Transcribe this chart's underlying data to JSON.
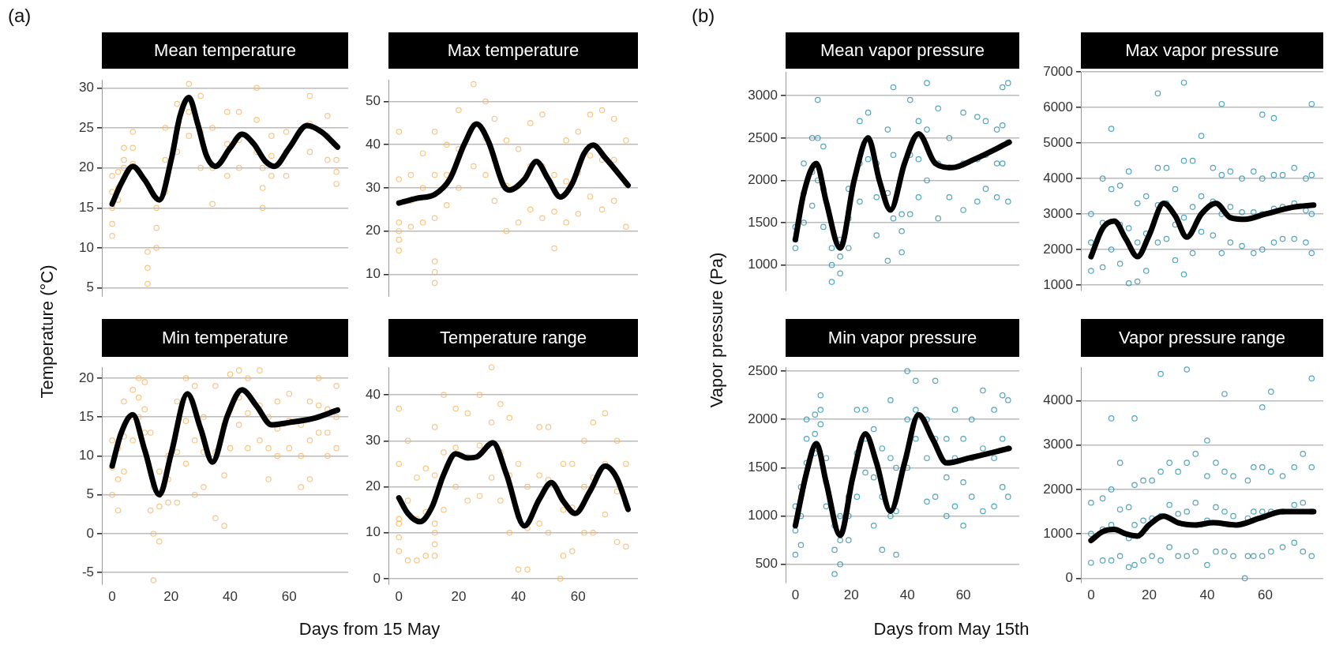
{
  "chart_data": [
    {
      "type": "scatter",
      "title": "Mean temperature",
      "ylabel": "Temperature (°C)",
      "annotations": [
        "(a)"
      ],
      "xlim": [
        -3.5,
        80
      ],
      "xticks": [
        0,
        20,
        40,
        60
      ],
      "ylim": [
        4,
        31
      ],
      "yticks": [
        5,
        10,
        15,
        20,
        25,
        30
      ],
      "grid": "y",
      "tick_labels": "y",
      "marker": "circle",
      "series": [
        {
          "type": "scatter",
          "color": "#f4b35e",
          "x": [
            0,
            0,
            0,
            0,
            0,
            2,
            2,
            2,
            4,
            4,
            4,
            7,
            7,
            7,
            12,
            12,
            12,
            15,
            15,
            15,
            18,
            18,
            18,
            22,
            22,
            22,
            26,
            26,
            26,
            30,
            30,
            30,
            34,
            34,
            34,
            39,
            39,
            39,
            43,
            43,
            43,
            49,
            49,
            49,
            51,
            51,
            51,
            54,
            54,
            54,
            59,
            59,
            59,
            67,
            67,
            67,
            73,
            73,
            73,
            76,
            76,
            76
          ],
          "values": [
            11.5,
            13,
            15,
            17,
            19,
            16,
            17.5,
            19.5,
            20,
            21,
            22.5,
            20.5,
            22.5,
            24.5,
            5.5,
            7.5,
            9.5,
            10,
            12.5,
            15,
            17,
            21,
            25,
            22,
            25,
            28,
            24,
            27,
            30.5,
            20,
            24.5,
            29,
            15.5,
            20,
            25,
            19,
            23,
            27,
            20,
            23.5,
            27,
            22,
            26,
            30,
            15,
            17.5,
            20,
            19,
            21.5,
            24,
            19,
            22,
            24.5,
            22,
            25.5,
            29,
            21,
            24,
            26.5,
            18,
            19.5,
            21
          ]
        },
        {
          "type": "line",
          "color": "#000000",
          "marker": "none",
          "x": [
            0,
            3,
            7,
            11,
            16,
            20,
            23,
            26,
            29,
            32,
            35,
            40,
            44,
            48,
            52,
            55,
            60,
            66,
            71,
            76.4
          ],
          "values": [
            15.5,
            18,
            20.2,
            18.5,
            16,
            21,
            26.5,
            28.8,
            25.5,
            21.5,
            20.2,
            22.5,
            24.2,
            23,
            20.8,
            20.2,
            22.5,
            25.3,
            24.5,
            22.6
          ]
        }
      ]
    },
    {
      "type": "scatter",
      "title": "Max temperature",
      "xlim": [
        -3.5,
        80
      ],
      "xticks": [
        0,
        20,
        40,
        60
      ],
      "ylim": [
        5,
        55
      ],
      "yticks": [
        10,
        20,
        30,
        40,
        50
      ],
      "grid": "y",
      "tick_labels": "y",
      "marker": "circle",
      "series": [
        {
          "type": "scatter",
          "color": "#f4b35e",
          "x": [
            0,
            0,
            0,
            0,
            0,
            0,
            4,
            4,
            4,
            8,
            8,
            8,
            12,
            12,
            12,
            12,
            12,
            12,
            16,
            16,
            16,
            20,
            20,
            20,
            25,
            25,
            25,
            29,
            29,
            29,
            32,
            32,
            32,
            36,
            36,
            36,
            40,
            40,
            40,
            44,
            44,
            44,
            48,
            48,
            48,
            52,
            52,
            52,
            56,
            56,
            56,
            60,
            60,
            60,
            64,
            64,
            64,
            68,
            68,
            68,
            72,
            72,
            72,
            76,
            76,
            76
          ],
          "values": [
            15.5,
            18,
            20,
            22,
            32,
            43,
            21,
            27,
            33,
            22,
            30,
            38,
            8,
            10.5,
            13,
            23,
            33,
            43,
            26,
            33,
            40,
            30,
            39,
            48,
            35,
            44.5,
            54,
            33,
            41.5,
            50,
            27,
            36.5,
            46,
            20,
            30.5,
            41,
            22,
            30.5,
            39,
            25,
            35,
            45,
            23,
            35,
            47,
            16,
            24.5,
            33,
            22,
            31.5,
            41,
            24,
            33.5,
            43,
            28,
            37.5,
            47,
            25,
            36.5,
            48,
            27,
            36.5,
            46,
            21,
            31,
            41
          ]
        },
        {
          "type": "line",
          "color": "#000000",
          "marker": "none",
          "x": [
            0,
            6,
            12,
            17,
            22,
            26,
            30,
            35,
            37,
            42,
            46,
            50,
            54,
            58,
            62,
            65,
            69,
            76.7
          ],
          "values": [
            26.5,
            27.6,
            28.5,
            32,
            40.3,
            44.8,
            40.7,
            30.6,
            29.5,
            32,
            36.1,
            32,
            27.9,
            31,
            38,
            39.9,
            37,
            30.6
          ]
        }
      ]
    },
    {
      "type": "scatter",
      "title": "Min temperature",
      "xlabel": "Days from 15 May",
      "xlim": [
        -3.5,
        80
      ],
      "xticks": [
        0,
        20,
        40,
        60
      ],
      "ylim": [
        -6.5,
        21.4
      ],
      "yticks": [
        -5,
        0,
        5,
        10,
        15,
        20
      ],
      "grid": "y",
      "marker": "circle",
      "series": [
        {
          "type": "scatter",
          "color": "#f4b35e",
          "x": [
            0,
            0,
            0,
            2,
            2,
            2,
            4,
            4,
            4,
            7,
            7,
            7,
            9,
            9,
            9,
            11,
            11,
            11,
            13,
            13,
            13,
            14,
            14,
            14,
            16,
            16,
            16,
            19,
            19,
            19,
            22,
            22,
            22,
            25,
            25,
            25,
            28,
            28,
            28,
            31,
            31,
            31,
            35,
            35,
            35,
            38,
            38,
            38,
            40,
            40,
            40,
            43,
            43,
            43,
            46,
            46,
            46,
            50,
            50,
            50,
            53,
            53,
            53,
            56,
            56,
            56,
            60,
            60,
            60,
            64,
            64,
            64,
            67,
            67,
            67,
            70,
            70,
            70,
            73,
            73,
            73,
            76,
            76,
            76
          ],
          "values": [
            5,
            8.5,
            12,
            3,
            7,
            11,
            8,
            12.5,
            17,
            12,
            15,
            18.5,
            15,
            17.5,
            20,
            13,
            16,
            19.5,
            3,
            8,
            13,
            -6,
            0,
            6,
            -1,
            3.5,
            8,
            4,
            7,
            10,
            4,
            10.5,
            17,
            9,
            14.5,
            20,
            5,
            12,
            19,
            6,
            10.5,
            15,
            2,
            10.5,
            19,
            1,
            7.5,
            14,
            11,
            16,
            20.5,
            14,
            17.5,
            21,
            11,
            15.5,
            20,
            12,
            16.5,
            21,
            7,
            11,
            15,
            10,
            13.5,
            17,
            11,
            14.5,
            18,
            6,
            10,
            14,
            7,
            12,
            17,
            13,
            16.5,
            20,
            10,
            13,
            16,
            11,
            15,
            19
          ]
        },
        {
          "type": "line",
          "color": "#000000",
          "marker": "none",
          "x": [
            0,
            3,
            7,
            11,
            16,
            20,
            25.5,
            30,
            34,
            39,
            44,
            49,
            54,
            60,
            68,
            76.4
          ],
          "values": [
            8.7,
            12.9,
            15.3,
            10.8,
            5,
            10.3,
            18,
            13.5,
            9.2,
            15.1,
            18.5,
            16.4,
            14,
            14.3,
            14.8,
            15.9
          ]
        }
      ]
    },
    {
      "type": "scatter",
      "title": "Temperature range",
      "xlim": [
        -3.5,
        80
      ],
      "xticks": [
        0,
        20,
        40,
        60
      ],
      "ylim": [
        -1.2,
        46
      ],
      "yticks": [
        0,
        10,
        20,
        30,
        40
      ],
      "grid": "y",
      "marker": "circle",
      "series": [
        {
          "type": "scatter",
          "color": "#f4b35e",
          "x": [
            0,
            0,
            0,
            0,
            0,
            0,
            3,
            3,
            3,
            6,
            6,
            6,
            9,
            9,
            9,
            12,
            12,
            12,
            12,
            12,
            12,
            15,
            15,
            15,
            19,
            19,
            19,
            23,
            23,
            23,
            27,
            27,
            27,
            31,
            31,
            31,
            34,
            34,
            34,
            37,
            37,
            37,
            40,
            40,
            40,
            43,
            43,
            43,
            47,
            47,
            47,
            50,
            50,
            50,
            54,
            55,
            55,
            55,
            58,
            58,
            58,
            62,
            62,
            62,
            65,
            65,
            65,
            69,
            69,
            69,
            73,
            73,
            73,
            76,
            76,
            76
          ],
          "values": [
            6,
            9,
            12,
            13,
            25,
            37,
            4,
            17,
            30,
            4,
            13,
            22,
            5,
            14.5,
            24,
            5,
            7.5,
            10,
            12,
            22.5,
            33,
            15,
            27.5,
            40,
            20,
            28.5,
            37,
            17,
            26.5,
            36,
            18,
            29,
            40,
            22,
            34,
            46,
            17,
            27.5,
            38,
            10,
            22.5,
            35,
            2,
            13.5,
            25,
            2,
            11,
            20,
            12,
            22.5,
            33,
            10,
            21.5,
            33,
            0,
            5,
            15,
            25,
            6,
            15.5,
            25,
            10,
            20,
            30,
            10,
            22,
            34,
            14,
            25,
            36,
            8,
            19,
            30,
            7,
            16,
            25
          ]
        },
        {
          "type": "line",
          "color": "#000000",
          "marker": "none",
          "x": [
            0,
            3,
            7,
            11,
            15,
            19,
            23,
            26,
            31.5,
            36,
            42,
            47,
            51,
            55,
            59,
            64,
            69,
            73,
            76.7
          ],
          "values": [
            17.6,
            14.2,
            12.4,
            15.5,
            22.7,
            27.2,
            26.3,
            26.5,
            29.6,
            22.7,
            11.5,
            17.3,
            20.9,
            16.9,
            14.2,
            19.1,
            24.5,
            21.8,
            15.1
          ]
        }
      ]
    },
    {
      "type": "scatter",
      "title": "Mean vapor pressure",
      "ylabel": "Vapor pressure (Pa)",
      "annotations": [
        "(b)"
      ],
      "xlim": [
        -3.5,
        80
      ],
      "xticks": [
        0,
        20,
        40,
        60
      ],
      "ylim": [
        700,
        3280
      ],
      "yticks": [
        1000,
        1500,
        2000,
        2500,
        3000
      ],
      "grid": "y",
      "tick_labels": "y",
      "marker": "circle",
      "series": [
        {
          "type": "scatter",
          "color": "#1b85a6",
          "x": [
            0,
            0,
            0,
            3,
            3,
            3,
            6,
            6,
            6,
            8,
            8,
            8,
            10,
            10,
            10,
            13,
            13,
            13,
            16,
            16,
            16,
            19,
            19,
            19,
            23,
            23,
            23,
            26,
            26,
            26,
            29,
            29,
            29,
            33,
            33,
            33,
            35,
            35,
            35,
            38,
            38,
            38,
            41,
            41,
            41,
            44,
            44,
            44,
            47,
            47,
            47,
            51,
            51,
            51,
            55,
            55,
            55,
            60,
            60,
            60,
            65,
            65,
            65,
            68,
            68,
            68,
            72,
            72,
            72,
            74,
            74,
            74,
            76,
            76,
            76
          ],
          "values": [
            1200,
            1300,
            1450,
            1500,
            1850,
            2200,
            1700,
            2100,
            2500,
            2000,
            2500,
            2950,
            1450,
            1900,
            2400,
            800,
            1000,
            1200,
            900,
            1100,
            1300,
            1200,
            1550,
            1900,
            1750,
            2200,
            2700,
            2250,
            2500,
            2800,
            1350,
            1800,
            2200,
            1050,
            1850,
            2600,
            1550,
            2300,
            3100,
            1150,
            1400,
            1600,
            1600,
            2300,
            2950,
            1800,
            2250,
            2700,
            2000,
            2600,
            3150,
            1550,
            2200,
            2850,
            1800,
            2150,
            2500,
            1650,
            2200,
            2800,
            1750,
            2250,
            2750,
            1900,
            2300,
            2700,
            1800,
            2200,
            2600,
            2200,
            2650,
            3100,
            1750,
            2450,
            3150
          ]
        },
        {
          "type": "line",
          "color": "#000000",
          "marker": "none",
          "x": [
            0,
            3,
            7.5,
            11,
            16,
            21,
            26,
            30,
            34,
            39,
            44,
            50,
            56,
            64,
            76.4
          ],
          "values": [
            1300,
            1850,
            2200,
            1750,
            1200,
            2000,
            2500,
            2000,
            1650,
            2200,
            2550,
            2200,
            2150,
            2250,
            2450
          ]
        }
      ]
    },
    {
      "type": "scatter",
      "title": "Max vapor pressure",
      "xlim": [
        -3.5,
        80
      ],
      "xticks": [
        0,
        20,
        40,
        60
      ],
      "ylim": [
        850,
        7000
      ],
      "yticks": [
        1000,
        2000,
        3000,
        4000,
        5000,
        6000,
        7000
      ],
      "grid": "y",
      "tick_labels": "y",
      "marker": "circle",
      "series": [
        {
          "type": "scatter",
          "color": "#1b85a6",
          "x": [
            0,
            0,
            0,
            4,
            4,
            4,
            7,
            7,
            7,
            10,
            10,
            10,
            13,
            13,
            13,
            16,
            16,
            16,
            19,
            19,
            19,
            23,
            23,
            23,
            23,
            26,
            26,
            26,
            29,
            29,
            29,
            32,
            32,
            32,
            32,
            35,
            35,
            35,
            38,
            38,
            38,
            42,
            42,
            42,
            45,
            45,
            45,
            45,
            48,
            48,
            48,
            52,
            52,
            52,
            56,
            56,
            56,
            59,
            59,
            59,
            59,
            63,
            63,
            63,
            63,
            66,
            66,
            66,
            70,
            70,
            70,
            74,
            74,
            74,
            76,
            76,
            76,
            76
          ],
          "values": [
            1400,
            2200,
            3000,
            1500,
            2750,
            4000,
            2000,
            3700,
            5400,
            1600,
            2700,
            3800,
            1050,
            2600,
            4200,
            1100,
            2200,
            3300,
            1400,
            2450,
            3500,
            2200,
            3250,
            4300,
            6400,
            2300,
            3300,
            4300,
            1700,
            2700,
            3700,
            1300,
            2900,
            4500,
            6700,
            1900,
            3200,
            4500,
            2500,
            3500,
            5200,
            2400,
            3350,
            4300,
            1900,
            3000,
            4100,
            6100,
            2200,
            3200,
            4200,
            2100,
            3050,
            4000,
            1900,
            3050,
            4200,
            2000,
            3000,
            4000,
            5800,
            2200,
            3150,
            4100,
            5700,
            2300,
            3200,
            4100,
            2300,
            3300,
            4300,
            2200,
            3100,
            4000,
            1900,
            3000,
            4100,
            6100
          ]
        },
        {
          "type": "line",
          "color": "#000000",
          "marker": "none",
          "x": [
            0,
            4,
            8,
            12,
            16,
            20,
            25,
            29,
            33,
            38,
            43,
            48,
            53,
            60,
            70,
            76.7
          ],
          "values": [
            1800,
            2600,
            2800,
            2300,
            1800,
            2400,
            3300,
            2950,
            2350,
            3000,
            3300,
            2900,
            2850,
            3000,
            3200,
            3250
          ]
        }
      ]
    },
    {
      "type": "scatter",
      "title": "Min vapor pressure",
      "xlabel": "Days from May 15th",
      "xlim": [
        -3.5,
        80
      ],
      "xticks": [
        0,
        20,
        40,
        60
      ],
      "ylim": [
        310,
        2540
      ],
      "yticks": [
        500,
        1000,
        1500,
        2000,
        2500
      ],
      "grid": "y",
      "marker": "circle",
      "series": [
        {
          "type": "scatter",
          "color": "#1b85a6",
          "x": [
            0,
            0,
            0,
            2,
            2,
            2,
            4,
            4,
            4,
            7,
            7,
            7,
            9,
            9,
            9,
            11,
            11,
            11,
            14,
            14,
            14,
            16,
            16,
            16,
            19,
            19,
            19,
            22,
            22,
            22,
            25,
            25,
            25,
            28,
            28,
            28,
            31,
            31,
            31,
            34,
            34,
            34,
            36,
            36,
            36,
            40,
            40,
            40,
            43,
            43,
            43,
            47,
            47,
            47,
            50,
            50,
            50,
            54,
            54,
            54,
            57,
            57,
            57,
            60,
            60,
            60,
            63,
            63,
            63,
            67,
            67,
            67,
            71,
            71,
            71,
            74,
            74,
            74,
            76,
            76,
            76
          ],
          "values": [
            600,
            850,
            1100,
            700,
            1000,
            1300,
            1550,
            1800,
            2000,
            1650,
            1850,
            2050,
            1950,
            2100,
            2250,
            1100,
            1350,
            1600,
            400,
            650,
            900,
            500,
            750,
            1000,
            750,
            1000,
            1200,
            1200,
            1650,
            2100,
            1450,
            1800,
            2100,
            900,
            1400,
            1900,
            650,
            1200,
            1700,
            1000,
            1600,
            2200,
            600,
            1050,
            1500,
            1500,
            2000,
            2500,
            1800,
            2100,
            2400,
            1150,
            1600,
            2000,
            1200,
            1800,
            2400,
            1000,
            1400,
            1800,
            1100,
            1600,
            2100,
            900,
            1350,
            1800,
            1200,
            1600,
            2000,
            1050,
            1700,
            2300,
            1100,
            1600,
            2100,
            1300,
            1800,
            2250,
            1200,
            1700,
            2200
          ]
        },
        {
          "type": "line",
          "color": "#000000",
          "marker": "none",
          "x": [
            0,
            4,
            7.5,
            11,
            16,
            20.5,
            25,
            29,
            34,
            39,
            44,
            49,
            54,
            62,
            76.4
          ],
          "values": [
            900,
            1450,
            1750,
            1350,
            800,
            1400,
            1850,
            1550,
            1050,
            1550,
            2050,
            1800,
            1550,
            1600,
            1700
          ]
        }
      ]
    },
    {
      "type": "scatter",
      "title": "Vapor pressure range",
      "xlim": [
        -3.5,
        80
      ],
      "xticks": [
        0,
        20,
        40,
        60
      ],
      "ylim": [
        -100,
        4750
      ],
      "yticks": [
        0,
        1000,
        2000,
        3000,
        4000
      ],
      "grid": "y",
      "marker": "circle",
      "series": [
        {
          "type": "scatter",
          "color": "#1b85a6",
          "x": [
            0,
            0,
            0,
            4,
            4,
            4,
            7,
            7,
            7,
            7,
            10,
            10,
            10,
            13,
            13,
            13,
            15,
            15,
            15,
            15,
            18,
            18,
            18,
            21,
            21,
            21,
            24,
            24,
            24,
            24,
            27,
            27,
            27,
            30,
            30,
            30,
            33,
            33,
            33,
            33,
            36,
            36,
            36,
            40,
            40,
            40,
            40,
            43,
            43,
            43,
            46,
            46,
            46,
            46,
            49,
            49,
            49,
            53,
            54,
            54,
            54,
            56,
            56,
            56,
            59,
            59,
            59,
            59,
            62,
            62,
            62,
            62,
            66,
            66,
            66,
            70,
            70,
            70,
            73,
            73,
            73,
            76,
            76,
            76,
            76
          ],
          "values": [
            350,
            1000,
            1700,
            400,
            1100,
            1800,
            400,
            1200,
            2000,
            3600,
            500,
            1550,
            2600,
            250,
            900,
            1600,
            300,
            1200,
            2100,
            3600,
            400,
            1300,
            2200,
            500,
            1350,
            2200,
            400,
            1400,
            2400,
            4600,
            700,
            1650,
            2600,
            500,
            1450,
            2400,
            500,
            1500,
            2600,
            4700,
            600,
            1700,
            2800,
            300,
            1300,
            2300,
            3100,
            600,
            1600,
            2600,
            600,
            1500,
            2400,
            4150,
            500,
            1400,
            2300,
            0,
            500,
            1350,
            2200,
            500,
            1500,
            2500,
            500,
            1500,
            2500,
            3850,
            600,
            1500,
            2400,
            4200,
            700,
            1500,
            2300,
            800,
            1650,
            2500,
            600,
            1700,
            2800,
            500,
            1500,
            2500,
            4500
          ]
        },
        {
          "type": "line",
          "color": "#000000",
          "marker": "none",
          "x": [
            0,
            4,
            8,
            12,
            16,
            20,
            25,
            30,
            36,
            42,
            50,
            58,
            66,
            76.7
          ],
          "values": [
            850,
            1050,
            1100,
            1000,
            950,
            1200,
            1400,
            1250,
            1200,
            1250,
            1200,
            1350,
            1500,
            1500
          ]
        }
      ]
    }
  ]
}
